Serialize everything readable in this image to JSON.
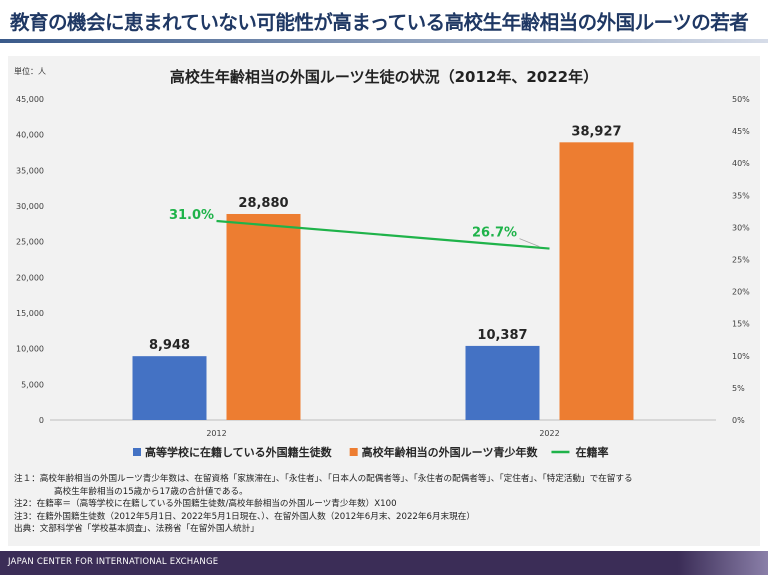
{
  "page": {
    "title": "教育の機会に恵まれていない可能性が高まっている高校生年齢相当の外国ルーツの若者",
    "unit": "単位：人",
    "footer": "JAPAN CENTER FOR INTERNATIONAL EXCHANGE"
  },
  "chart_data": {
    "type": "bar",
    "title": "高校生年齢相当の外国ルーツ生徒の状況（2012年、2022年）",
    "categories": [
      "2012",
      "2022"
    ],
    "ylim": [
      0,
      45000
    ],
    "y_ticks": [
      "0",
      "5,000",
      "10,000",
      "15,000",
      "20,000",
      "25,000",
      "30,000",
      "35,000",
      "40,000",
      "45,000"
    ],
    "y2lim": [
      0,
      50
    ],
    "y2_ticks": [
      "0%",
      "5%",
      "10%",
      "15%",
      "20%",
      "25%",
      "30%",
      "35%",
      "40%",
      "45%",
      "50%"
    ],
    "grid": false,
    "legend_position": "bottom",
    "series": [
      {
        "name": "高等学校に在籍している外国籍生徒数",
        "kind": "bar",
        "axis": "left",
        "color": "#4472c4",
        "values": [
          8948,
          10387
        ],
        "labels": [
          "8,948",
          "10,387"
        ]
      },
      {
        "name": "高校年齢相当の外国ルーツ青少年数",
        "kind": "bar",
        "axis": "left",
        "color": "#ed7d31",
        "values": [
          28880,
          38927
        ],
        "labels": [
          "28,880",
          "38,927"
        ]
      },
      {
        "name": "在籍率",
        "kind": "line",
        "axis": "right",
        "color": "#1fb34a",
        "values": [
          31.0,
          26.7
        ],
        "labels": [
          "31.0%",
          "26.7%"
        ]
      }
    ]
  },
  "notes": [
    "注１：高校年齢相当の外国ルーツ青少年数は、在留資格「家族滞在」、「永住者」、「日本人の配偶者等」、「永住者の配偶者等」、「定住者」、「特定活動」で在留する",
    "高校生年齢相当の15歳から17歳の合計値である。",
    "注2：在籍率＝（高等学校に在籍している外国籍生徒数/高校年齢相当の外国ルーツ青少年数）X100",
    "注3：在籍外国籍生徒数（2012年5月1日、2022年5月1日現在、）、在留外国人数（2012年6月末、2022年6月末現在）",
    "出典：文部科学省「学校基本調査」、法務省「在留外国人統計」"
  ]
}
